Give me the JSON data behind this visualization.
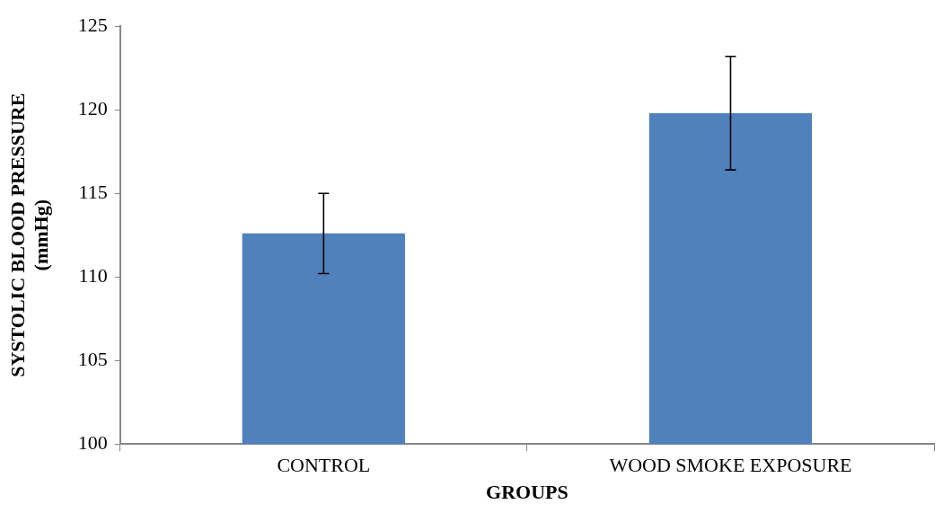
{
  "chart_data": {
    "type": "bar",
    "xlabel": "GROUPS",
    "ylabel": "SYSTOLIC BLOOD PRESSURE (mmHg)",
    "categories": [
      "CONTROL",
      "WOOD SMOKE EXPOSURE"
    ],
    "values": [
      112.6,
      119.8
    ],
    "errors": [
      2.4,
      3.4
    ],
    "color": "#4f81bd",
    "ylim": [
      100,
      125
    ],
    "yticks": [
      100,
      105,
      110,
      115,
      120,
      125
    ],
    "grid": false,
    "legend": false
  }
}
